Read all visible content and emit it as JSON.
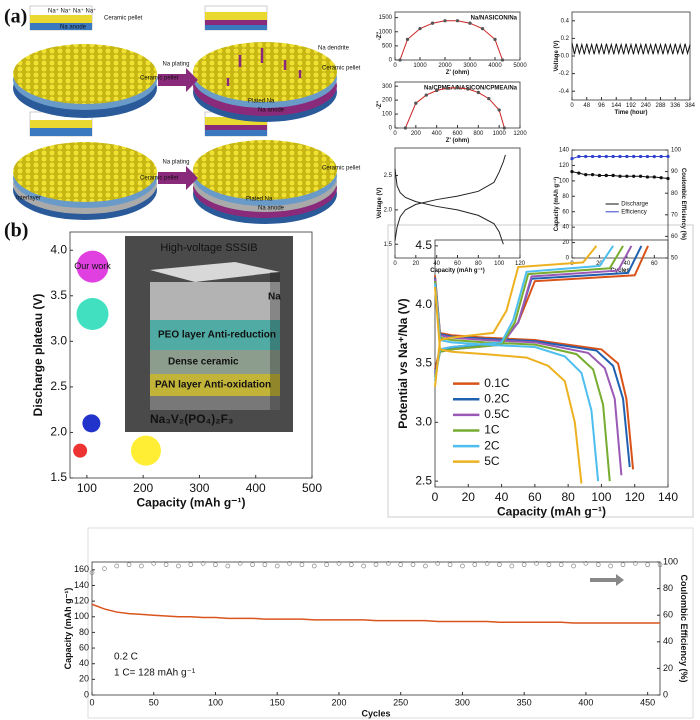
{
  "panels": [
    "(a)",
    "(b)"
  ],
  "schematic": {
    "labels": [
      "Na⁺ Na⁺ Na⁺ Na⁺",
      "Ceramic pellet",
      "Na anode",
      "Na plating",
      "Na dendrite",
      "Ceramic pellet",
      "Plated Na",
      "Na anode",
      "Na plating",
      "Interlayer",
      "Ceramic pellet",
      "Plated Na",
      "Na anode",
      "Ceramic pellet",
      "Ceramic pellet"
    ]
  },
  "chart_data": [
    {
      "type": "line",
      "title": "Na/NASICON/Na",
      "xlabel": "Z' (ohm)",
      "ylabel": "-Z''",
      "x": [
        200,
        500,
        1000,
        1500,
        2000,
        2500,
        3000,
        3500,
        4000,
        4300
      ],
      "series": [
        {
          "color": "#cc2222",
          "marker": "#555555",
          "values": [
            0,
            729,
            1110,
            1303,
            1390,
            1390,
            1303,
            1110,
            729,
            0
          ]
        }
      ],
      "xlim": [
        0,
        5000
      ],
      "xticks": [
        0,
        1000,
        2000,
        3000,
        4000,
        5000
      ],
      "ylim": [
        0,
        1700
      ],
      "yticks": [
        0,
        500,
        1000,
        1500
      ]
    },
    {
      "type": "line",
      "title": "Na/CPMEA/NASICON/CPMEA/Na",
      "xlabel": "Z' (ohm)",
      "ylabel": "-Z''",
      "x": [
        100,
        200,
        300,
        400,
        500,
        600,
        700,
        800,
        900,
        1000,
        1050
      ],
      "series": [
        {
          "color": "#cc2222",
          "marker": "#555555",
          "values": [
            0,
            178,
            236,
            269,
            286,
            289,
            280,
            255,
            211,
            129,
            0
          ]
        }
      ],
      "xlim": [
        0,
        1200
      ],
      "xticks": [
        0,
        200,
        400,
        600,
        800,
        1000,
        1200
      ],
      "ylim": [
        0,
        330
      ],
      "yticks": [
        0,
        100,
        200,
        300
      ]
    },
    {
      "type": "line",
      "xlabel": "Capacity (mAh g⁻¹)",
      "ylabel": "Voltage (V)",
      "series": [
        {
          "color": "#222222",
          "x": [
            0,
            2,
            5,
            10,
            20,
            40,
            60,
            80,
            95,
            100,
            104,
            106
          ],
          "values": [
            1.55,
            1.75,
            1.9,
            2.0,
            2.08,
            2.15,
            2.2,
            2.27,
            2.4,
            2.55,
            2.7,
            2.8
          ]
        },
        {
          "color": "#222222",
          "x": [
            0,
            2,
            5,
            10,
            20,
            40,
            60,
            80,
            95,
            100,
            104
          ],
          "values": [
            2.6,
            2.35,
            2.25,
            2.18,
            2.12,
            2.05,
            2.0,
            1.92,
            1.8,
            1.68,
            1.5
          ]
        }
      ],
      "xlim": [
        0,
        120
      ],
      "xticks": [
        0,
        20,
        40,
        60,
        80,
        100,
        120
      ],
      "ylim": [
        1.3,
        2.9
      ],
      "yticks": [
        1.5,
        {
          "value": 2,
          "label": "2.0"
        },
        2.5
      ]
    },
    {
      "type": "line",
      "xlabel": "Time (hour)",
      "ylabel": "Voltage (V)",
      "x": [
        0,
        8,
        16,
        24,
        32,
        40,
        48,
        56,
        64,
        72,
        80,
        88,
        96,
        104,
        112,
        120,
        128,
        136,
        144,
        152,
        160,
        168,
        176,
        184,
        192,
        200,
        208,
        216,
        224,
        232,
        240,
        248,
        256,
        264,
        272,
        280,
        288,
        296,
        304,
        312,
        320,
        328,
        336,
        344,
        352,
        360,
        368,
        376,
        384
      ],
      "series": [
        {
          "color": "#111111",
          "values": [
            0.15,
            0.02,
            0.14,
            0.03,
            0.13,
            0.02,
            0.14,
            0.03,
            0.13,
            0.02,
            0.14,
            0.03,
            0.13,
            0.02,
            0.14,
            0.03,
            0.13,
            0.02,
            0.14,
            0.03,
            0.13,
            0.02,
            0.14,
            0.03,
            0.13,
            0.02,
            0.14,
            0.03,
            0.13,
            0.02,
            0.14,
            0.03,
            0.13,
            0.02,
            0.14,
            0.03,
            0.13,
            0.02,
            0.14,
            0.03,
            0.13,
            0.02,
            0.14,
            0.03,
            0.13,
            0.02,
            0.14,
            0.03,
            0.13
          ]
        }
      ],
      "xlim": [
        0,
        384
      ],
      "xticks": [
        0,
        48,
        96,
        144,
        192,
        240,
        288,
        336,
        384
      ],
      "ylim": [
        -0.5,
        0.5
      ],
      "yticks": [
        -0.4,
        -0.2,
        {
          "value": 0,
          "label": "0.0"
        },
        0.2,
        0.4
      ]
    },
    {
      "type": "line",
      "xlabel": "Cycles",
      "ylabel": "Capacity (mAh g⁻¹)",
      "y2label": "Coulombic Efficiency (%)",
      "legend": "center",
      "x": [
        0,
        5,
        10,
        15,
        20,
        25,
        30,
        35,
        40,
        45,
        50,
        55,
        60,
        65,
        70
      ],
      "series": [
        {
          "name": "Discharge",
          "color": "#111111",
          "marker": "#111111",
          "values": [
            112,
            110,
            108,
            108,
            107,
            107,
            107,
            106,
            106,
            106,
            106,
            105,
            105,
            104,
            103
          ]
        },
        {
          "name": "Efficiency",
          "color": "#3344cc",
          "marker": "#3344cc",
          "axis": "y2",
          "values": [
            96,
            97,
            97,
            97,
            97,
            97,
            97,
            97,
            97,
            97,
            97,
            97,
            97,
            97,
            97
          ]
        }
      ],
      "xlim": [
        0,
        70
      ],
      "xticks": [
        0,
        20,
        40,
        60
      ],
      "ylim": [
        0,
        140
      ],
      "yticks": [
        0,
        20,
        40,
        60,
        80,
        100,
        120,
        140
      ],
      "y2lim": [
        50,
        100
      ],
      "y2ticks": [
        50,
        60,
        70,
        80,
        90,
        100
      ]
    },
    {
      "type": "scatter",
      "xlabel": "Capacity (mAh g⁻¹)",
      "ylabel": "Discharge plateau (V)",
      "x": [
        110,
        110,
        108,
        88,
        205
      ],
      "values": [
        3.82,
        3.3,
        2.1,
        1.8,
        1.8
      ],
      "sizes": [
        16,
        16,
        9,
        7,
        15
      ],
      "colors": [
        "#e040e0",
        "#40e0c0",
        "#2233cc",
        "#ee3333",
        "#ffee33"
      ],
      "annotations": [
        "Our work"
      ],
      "inset": {
        "title": "High-voltage SSSIB",
        "layers": [
          "Na",
          "PEO layer Anti-reduction",
          "Dense ceramic",
          "PAN layer Anti-oxidation",
          "Na₃V₂(PO₄)₂F₃"
        ]
      },
      "xlim": [
        70,
        500
      ],
      "xticks": [
        100,
        200,
        300,
        400,
        500
      ],
      "ylim": [
        1.5,
        4.2
      ],
      "yticks": [
        1.5,
        {
          "value": 2,
          "label": "2.0"
        },
        2.5,
        {
          "value": 3,
          "label": "3.0"
        },
        3.5,
        {
          "value": 4,
          "label": "4.0"
        }
      ]
    },
    {
      "type": "line",
      "xlabel": "Capacity (mAh g⁻¹)",
      "ylabel": "Potential vs Na⁺/Na (V)",
      "legend": "lower left",
      "series": [
        {
          "name": "0.1C",
          "color": "#d95319",
          "x": [
            0,
            3,
            10,
            30,
            60,
            100,
            110,
            115,
            119
          ],
          "values": [
            4.25,
            3.76,
            3.74,
            3.72,
            3.7,
            3.62,
            3.5,
            3.2,
            2.6
          ]
        },
        {
          "color": "#d95319",
          "x": [
            0,
            3,
            10,
            40,
            50,
            60,
            120,
            128
          ],
          "values": [
            3.45,
            3.62,
            3.64,
            3.68,
            3.85,
            4.2,
            4.25,
            4.5
          ]
        },
        {
          "name": "0.2C",
          "color": "#2060b0",
          "x": [
            0,
            3,
            10,
            30,
            60,
            97,
            107,
            113,
            117
          ],
          "values": [
            4.23,
            3.75,
            3.73,
            3.71,
            3.69,
            3.61,
            3.48,
            3.2,
            2.62
          ]
        },
        {
          "color": "#2060b0",
          "x": [
            0,
            3,
            10,
            40,
            50,
            58,
            116,
            124
          ],
          "values": [
            3.42,
            3.6,
            3.63,
            3.67,
            3.85,
            4.22,
            4.27,
            4.5
          ]
        },
        {
          "name": "0.5C",
          "color": "#9b59b6",
          "x": [
            0,
            3,
            10,
            30,
            60,
            92,
            102,
            108,
            112
          ],
          "values": [
            4.22,
            3.74,
            3.72,
            3.7,
            3.68,
            3.59,
            3.46,
            3.2,
            2.55
          ]
        },
        {
          "color": "#9b59b6",
          "x": [
            0,
            3,
            10,
            40,
            50,
            58,
            110,
            118
          ],
          "values": [
            3.4,
            3.6,
            3.62,
            3.66,
            3.85,
            4.24,
            4.29,
            4.5
          ]
        },
        {
          "name": "1C",
          "color": "#77ac30",
          "x": [
            0,
            3,
            10,
            30,
            60,
            85,
            95,
            101,
            105
          ],
          "values": [
            4.2,
            3.72,
            3.7,
            3.68,
            3.66,
            3.58,
            3.45,
            3.15,
            2.5
          ]
        },
        {
          "color": "#77ac30",
          "x": [
            0,
            3,
            10,
            40,
            48,
            56,
            105,
            113
          ],
          "values": [
            3.38,
            3.6,
            3.62,
            3.66,
            3.85,
            4.26,
            4.31,
            4.5
          ]
        },
        {
          "name": "2C",
          "color": "#4dbeee",
          "x": [
            0,
            3,
            10,
            30,
            60,
            78,
            88,
            94,
            98
          ],
          "values": [
            4.18,
            3.7,
            3.68,
            3.66,
            3.64,
            3.56,
            3.42,
            3.1,
            2.5
          ]
        },
        {
          "color": "#4dbeee",
          "x": [
            0,
            3,
            10,
            40,
            47,
            55,
            99,
            107
          ],
          "values": [
            3.35,
            3.62,
            3.64,
            3.68,
            3.87,
            4.28,
            4.33,
            4.5
          ]
        },
        {
          "name": "5C",
          "color": "#edb120",
          "x": [
            0,
            3,
            10,
            30,
            55,
            68,
            78,
            84,
            88
          ],
          "values": [
            4.15,
            3.62,
            3.6,
            3.58,
            3.55,
            3.48,
            3.35,
            3.0,
            2.48
          ]
        },
        {
          "color": "#edb120",
          "x": [
            0,
            3,
            10,
            35,
            43,
            50,
            89,
            97
          ],
          "values": [
            3.3,
            3.7,
            3.72,
            3.76,
            3.95,
            4.32,
            4.36,
            4.5
          ]
        }
      ],
      "xlim": [
        0,
        140
      ],
      "xticks": [
        0,
        20,
        40,
        60,
        80,
        100,
        120,
        140
      ],
      "ylim": [
        2.45,
        4.55
      ],
      "yticks": [
        2.5,
        {
          "value": 3,
          "label": "3.0"
        },
        3.5,
        {
          "value": 4,
          "label": "4.0"
        },
        4.5
      ]
    },
    {
      "type": "line",
      "xlabel": "Cycles",
      "ylabel": "Capacity (mAh g⁻¹)",
      "y2label": "Coulombic Efficiency (%)",
      "ycolor": "#d9541e",
      "annotations": [
        "0.2 C",
        "1 C= 128 mAh g⁻¹"
      ],
      "x": [
        0,
        10,
        20,
        30,
        40,
        50,
        60,
        70,
        80,
        90,
        100,
        110,
        120,
        130,
        140,
        150,
        160,
        170,
        180,
        190,
        200,
        210,
        220,
        230,
        240,
        250,
        260,
        270,
        280,
        290,
        300,
        310,
        320,
        330,
        340,
        350,
        360,
        370,
        380,
        390,
        400,
        410,
        420,
        430,
        440,
        450,
        460
      ],
      "series": [
        {
          "color": "#d9541e",
          "width": 1.5,
          "values": [
            116,
            110,
            106,
            104,
            103,
            102,
            101,
            100,
            100,
            99,
            99,
            98,
            98,
            98,
            97,
            97,
            97,
            97,
            96,
            96,
            96,
            96,
            96,
            95,
            95,
            95,
            95,
            95,
            94,
            94,
            94,
            94,
            94,
            93,
            93,
            93,
            93,
            93,
            93,
            92,
            92,
            92,
            92,
            92,
            92,
            92,
            92
          ]
        },
        {
          "marker": "#888888",
          "open": true,
          "axis": "y2",
          "values": [
            92,
            95,
            97,
            98,
            97,
            99,
            98,
            97,
            98,
            99,
            98,
            97,
            99,
            98,
            98,
            97,
            99,
            98,
            97,
            98,
            99,
            98,
            97,
            98,
            99,
            98,
            98,
            97,
            99,
            98,
            97,
            98,
            99,
            98,
            97,
            98,
            99,
            98,
            98,
            97,
            99,
            98,
            97,
            98,
            99,
            98,
            98
          ]
        }
      ],
      "xlim": [
        0,
        460
      ],
      "xticks": [
        0,
        50,
        100,
        150,
        200,
        250,
        300,
        350,
        400,
        450
      ],
      "ylim": [
        0,
        170
      ],
      "yticks": [
        0,
        20,
        40,
        60,
        80,
        100,
        120,
        140,
        160
      ],
      "y2lim": [
        0,
        100
      ],
      "y2ticks": [
        0,
        20,
        40,
        60,
        80,
        100
      ]
    }
  ]
}
